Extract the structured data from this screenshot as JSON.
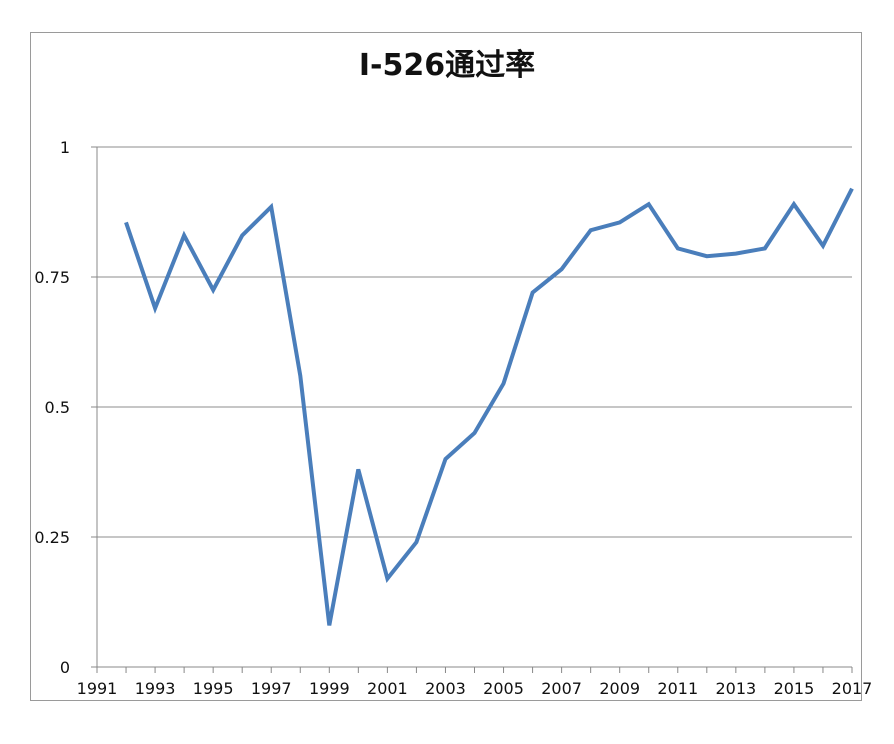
{
  "chart_data": {
    "type": "line",
    "title": "I-526通过率",
    "xlabel": "",
    "ylabel": "",
    "x": [
      1992,
      1993,
      1994,
      1995,
      1996,
      1997,
      1998,
      1999,
      2000,
      2001,
      2002,
      2003,
      2004,
      2005,
      2006,
      2007,
      2008,
      2009,
      2010,
      2011,
      2012,
      2013,
      2014,
      2015,
      2016,
      2017
    ],
    "series": [
      {
        "values": [
          0.855,
          0.69,
          0.83,
          0.725,
          0.83,
          0.885,
          0.56,
          0.08,
          0.38,
          0.17,
          0.24,
          0.4,
          0.45,
          0.545,
          0.72,
          0.765,
          0.84,
          0.855,
          0.89,
          0.805,
          0.79,
          0.795,
          0.805,
          0.89,
          0.81,
          0.92
        ]
      }
    ],
    "xlim": [
      1991,
      2017
    ],
    "ylim": [
      0,
      1
    ],
    "x_tick_labels": [
      "1991",
      "1993",
      "1995",
      "1997",
      "1999",
      "2001",
      "2003",
      "2005",
      "2007",
      "2009",
      "2011",
      "2013",
      "2015",
      "2017"
    ],
    "y_tick_labels": [
      "0",
      "0.25",
      "0.5",
      "0.75",
      "1"
    ],
    "y_ticks": [
      0,
      0.25,
      0.5,
      0.75,
      1
    ],
    "grid": true,
    "legend": "none",
    "colors": {
      "line": "#4a7ebb",
      "grid": "#8c8c8c",
      "axis": "#888888"
    }
  }
}
